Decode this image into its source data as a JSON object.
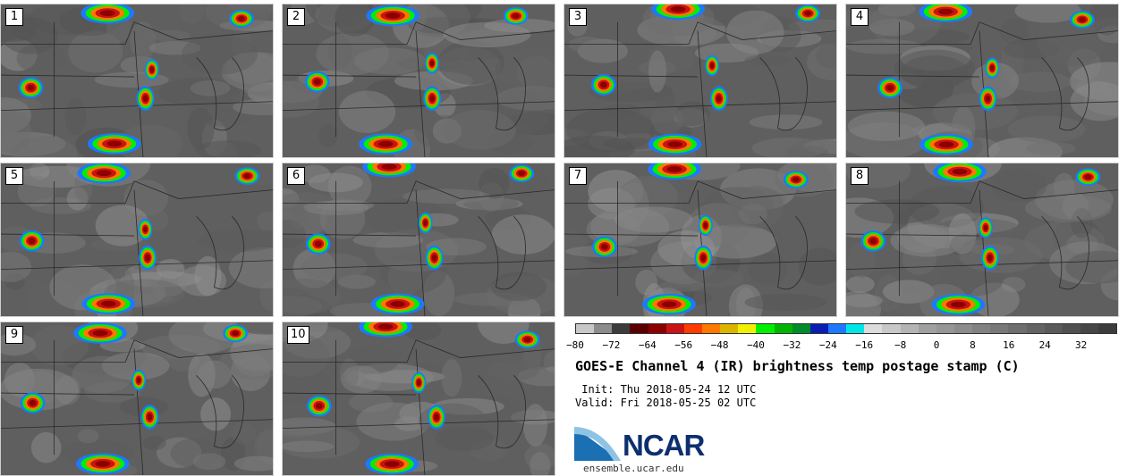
{
  "panels": [
    {
      "label": "1"
    },
    {
      "label": "2"
    },
    {
      "label": "3"
    },
    {
      "label": "4"
    },
    {
      "label": "5"
    },
    {
      "label": "6"
    },
    {
      "label": "7"
    },
    {
      "label": "8"
    },
    {
      "label": "9"
    },
    {
      "label": "10"
    }
  ],
  "colorbar": {
    "colors": [
      "#c8c8c8",
      "#8c8c8c",
      "#3c3c3c",
      "#5a0000",
      "#8c0000",
      "#c81414",
      "#ff3c00",
      "#ff7800",
      "#dcb400",
      "#f0f000",
      "#00f000",
      "#00b400",
      "#008c28",
      "#0a1eb4",
      "#1e78ff",
      "#00e6e6",
      "#dcdcdc",
      "#c8c8c8",
      "#b4b4b4",
      "#a0a0a0",
      "#969696",
      "#8c8c8c",
      "#828282",
      "#787878",
      "#6e6e6e",
      "#646464",
      "#5a5a5a",
      "#505050",
      "#464646",
      "#3c3c3c"
    ],
    "ticks": [
      "−80",
      "−72",
      "−64",
      "−56",
      "−48",
      "−40",
      "−32",
      "−24",
      "−16",
      "−8",
      "0",
      "8",
      "16",
      "24",
      "32"
    ]
  },
  "title": "GOES-E Channel 4 (IR) brightness temp postage stamp (C)",
  "init_label": " Init: Thu 2018-05-24 12 UTC",
  "valid_label": "Valid: Fri 2018-05-25 02 UTC",
  "logo_text": "NCAR",
  "site": "ensemble.ucar.edu"
}
